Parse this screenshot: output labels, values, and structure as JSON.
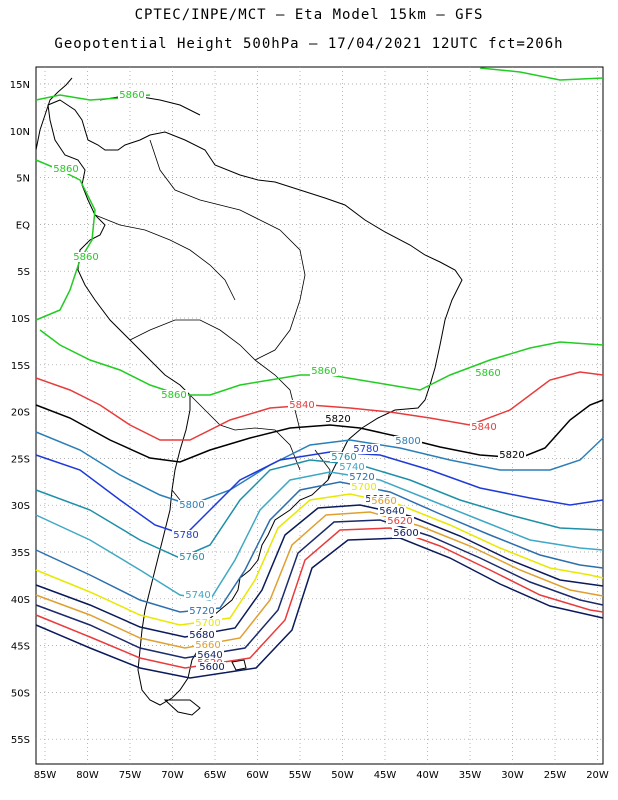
{
  "header": {
    "line1": "CPTEC/INPE/MCT –  Eta Model 15km – GFS",
    "line2": "Geopotential Height 500hPa – 17/04/2021 12UTC fct=206h"
  },
  "axes": {
    "lat_labels": [
      "15N",
      "10N",
      "5N",
      "EQ",
      "5S",
      "10S",
      "15S",
      "20S",
      "25S",
      "30S",
      "35S",
      "40S",
      "45S",
      "50S",
      "55S"
    ],
    "lon_labels": [
      "85W",
      "80W",
      "75W",
      "70W",
      "65W",
      "60W",
      "55W",
      "50W",
      "45W",
      "40W",
      "35W",
      "30W",
      "25W",
      "20W"
    ]
  },
  "contours": [
    {
      "value": "5860",
      "color": "#22cc22"
    },
    {
      "value": "5840",
      "color": "#e83c3c"
    },
    {
      "value": "5820",
      "color": "#000000"
    },
    {
      "value": "5800",
      "color": "#2a7fb8"
    },
    {
      "value": "5780",
      "color": "#1f3ad8"
    },
    {
      "value": "5760",
      "color": "#1e8fa8"
    },
    {
      "value": "5740",
      "color": "#3fa8c4"
    },
    {
      "value": "5720",
      "color": "#2c6fae"
    },
    {
      "value": "5700",
      "color": "#e8e800"
    },
    {
      "value": "5680",
      "color": "#0a1a5c"
    },
    {
      "value": "5660",
      "color": "#e0a030"
    },
    {
      "value": "5640",
      "color": "#1a2a6a"
    },
    {
      "value": "5620",
      "color": "#e83c3c"
    },
    {
      "value": "5600",
      "color": "#0a1a5c"
    }
  ]
}
